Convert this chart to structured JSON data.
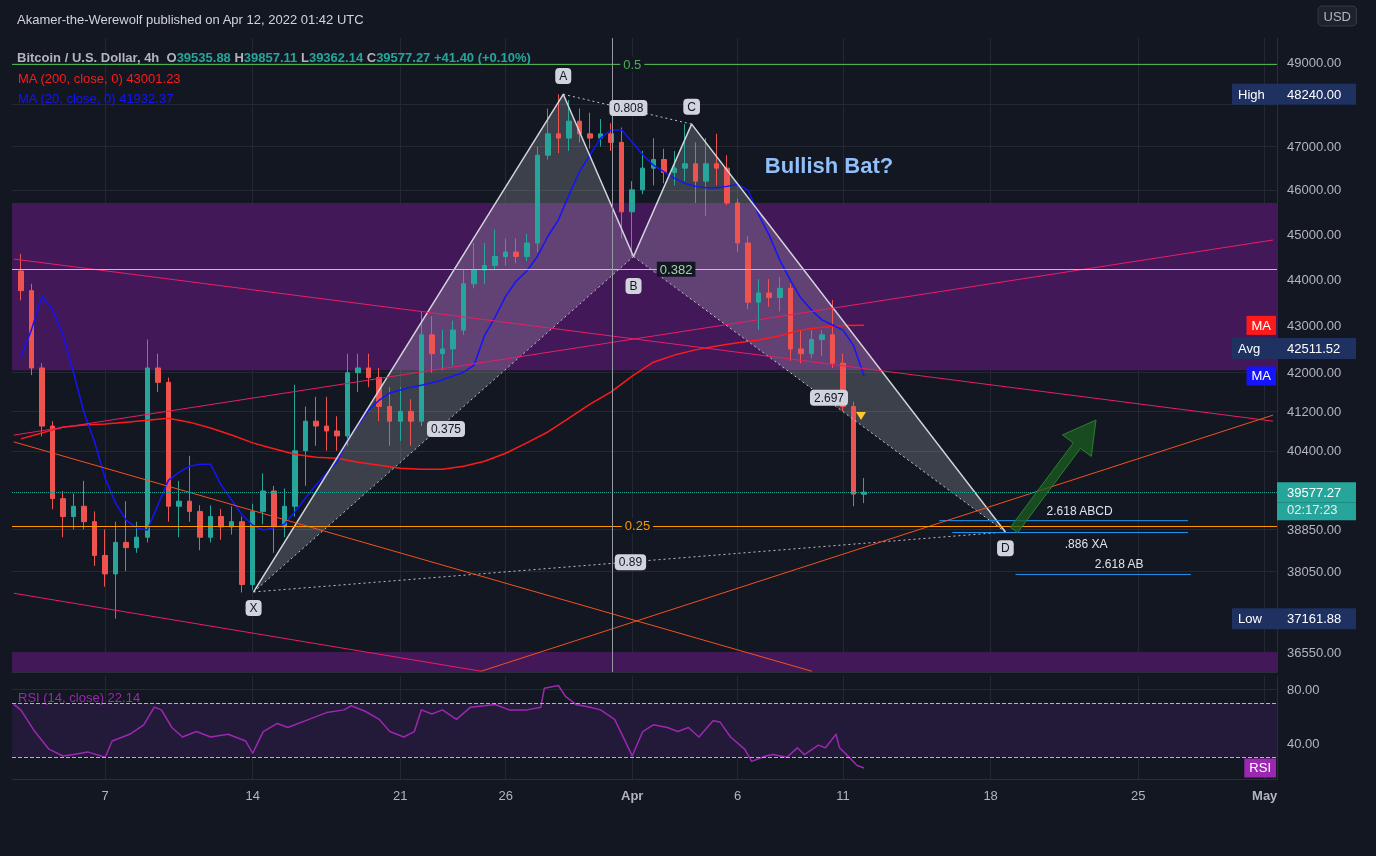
{
  "chart_data": [
    {
      "type": "candlestick",
      "title": "Akamer-the-Werewolf published on Apr 12, 2022 01:42 UTC",
      "subtitle": "Bitcoin / U.S. Dollar, 4h  O39535.88 H39857.11 L39362.14 C39577.27 +41.40 (+0.10%)",
      "x": [
        "2022-03-03T00:00",
        "2022-03-03T12:00",
        "2022-03-04T00:00",
        "2022-03-04T12:00",
        "2022-03-05T00:00",
        "2022-03-05T12:00",
        "2022-03-06T00:00",
        "2022-03-06T12:00",
        "2022-03-07T00:00",
        "2022-03-07T12:00",
        "2022-03-08T00:00",
        "2022-03-08T12:00",
        "2022-03-09T00:00",
        "2022-03-09T12:00",
        "2022-03-10T00:00",
        "2022-03-10T12:00",
        "2022-03-11T00:00",
        "2022-03-11T12:00",
        "2022-03-12T00:00",
        "2022-03-12T12:00",
        "2022-03-13T00:00",
        "2022-03-13T12:00",
        "2022-03-14T00:00",
        "2022-03-14T12:00",
        "2022-03-15T00:00",
        "2022-03-15T12:00",
        "2022-03-16T00:00",
        "2022-03-16T12:00",
        "2022-03-17T00:00",
        "2022-03-17T12:00",
        "2022-03-18T00:00",
        "2022-03-18T12:00",
        "2022-03-19T00:00",
        "2022-03-19T12:00",
        "2022-03-20T00:00",
        "2022-03-20T12:00",
        "2022-03-21T00:00",
        "2022-03-21T12:00",
        "2022-03-22T00:00",
        "2022-03-22T12:00",
        "2022-03-23T00:00",
        "2022-03-23T12:00",
        "2022-03-24T00:00",
        "2022-03-24T12:00",
        "2022-03-25T00:00",
        "2022-03-25T12:00",
        "2022-03-26T00:00",
        "2022-03-26T12:00",
        "2022-03-27T00:00",
        "2022-03-27T12:00",
        "2022-03-28T00:00",
        "2022-03-28T12:00",
        "2022-03-29T00:00",
        "2022-03-29T12:00",
        "2022-03-30T00:00",
        "2022-03-30T12:00",
        "2022-03-31T00:00",
        "2022-03-31T12:00",
        "2022-04-01T00:00",
        "2022-04-01T12:00",
        "2022-04-02T00:00",
        "2022-04-02T12:00",
        "2022-04-03T00:00",
        "2022-04-03T12:00",
        "2022-04-04T00:00",
        "2022-04-04T12:00",
        "2022-04-05T00:00",
        "2022-04-05T12:00",
        "2022-04-06T00:00",
        "2022-04-06T12:00",
        "2022-04-07T00:00",
        "2022-04-07T12:00",
        "2022-04-08T00:00",
        "2022-04-08T12:00",
        "2022-04-09T00:00",
        "2022-04-09T12:00",
        "2022-04-10T00:00",
        "2022-04-10T12:00",
        "2022-04-11T00:00",
        "2022-04-11T12:00",
        "2022-04-12T00:00"
      ],
      "ohlc": [
        [
          44180,
          44560,
          43540,
          43750
        ],
        [
          43750,
          43900,
          41950,
          42100
        ],
        [
          42100,
          42200,
          40690,
          40900
        ],
        [
          40900,
          41000,
          39240,
          39450
        ],
        [
          39450,
          39600,
          38700,
          39100
        ],
        [
          39100,
          39550,
          38850,
          39300
        ],
        [
          39300,
          39800,
          38850,
          39000
        ],
        [
          39000,
          39200,
          38150,
          38350
        ],
        [
          38350,
          38850,
          37760,
          38000
        ],
        [
          38000,
          39000,
          37161.88,
          38600
        ],
        [
          38600,
          39400,
          38050,
          38500
        ],
        [
          38500,
          39000,
          38400,
          38700
        ],
        [
          38700,
          42700,
          38600,
          42100
        ],
        [
          42100,
          42400,
          41600,
          41800
        ],
        [
          41800,
          41900,
          39000,
          39300
        ],
        [
          39300,
          39800,
          38700,
          39400
        ],
        [
          39400,
          40300,
          39000,
          39200
        ],
        [
          39200,
          39320,
          38450,
          38700
        ],
        [
          38700,
          39320,
          38600,
          39100
        ],
        [
          39100,
          39250,
          38650,
          38900
        ],
        [
          38900,
          39300,
          38750,
          39000
        ],
        [
          39000,
          39100,
          37650,
          37800
        ],
        [
          37800,
          39350,
          37700,
          39200
        ],
        [
          39200,
          39950,
          38950,
          39600
        ],
        [
          39600,
          39700,
          38400,
          38900
        ],
        [
          38900,
          39650,
          38700,
          39300
        ],
        [
          39300,
          41750,
          39100,
          40400
        ],
        [
          40400,
          41300,
          39700,
          41000
        ],
        [
          41000,
          41500,
          40500,
          40900
        ],
        [
          40900,
          41500,
          40400,
          40800
        ],
        [
          40800,
          41100,
          40400,
          40700
        ],
        [
          40700,
          42400,
          40500,
          42000
        ],
        [
          42000,
          42400,
          41600,
          42100
        ],
        [
          42100,
          42400,
          41700,
          41900
        ],
        [
          41900,
          42100,
          41000,
          41300
        ],
        [
          41300,
          41700,
          40500,
          41000
        ],
        [
          41000,
          41700,
          40600,
          41200
        ],
        [
          41200,
          41450,
          40500,
          41000
        ],
        [
          41000,
          43300,
          40900,
          42800
        ],
        [
          42800,
          43200,
          42000,
          42400
        ],
        [
          42400,
          42900,
          42050,
          42500
        ],
        [
          42500,
          43100,
          42150,
          42900
        ],
        [
          42900,
          44200,
          42800,
          43900
        ],
        [
          43900,
          44800,
          43800,
          44200
        ],
        [
          44200,
          44800,
          43900,
          44300
        ],
        [
          44300,
          45100,
          44200,
          44500
        ],
        [
          44500,
          44900,
          44300,
          44600
        ],
        [
          44600,
          44900,
          44350,
          44500
        ],
        [
          44500,
          45000,
          44400,
          44800
        ],
        [
          44800,
          47000,
          44600,
          46800
        ],
        [
          46800,
          47900,
          46700,
          47300
        ],
        [
          47300,
          48240,
          46850,
          47200
        ],
        [
          47200,
          48100,
          46900,
          47600
        ],
        [
          47600,
          47900,
          47100,
          47300
        ],
        [
          47300,
          47800,
          46950,
          47200
        ],
        [
          47200,
          47650,
          47000,
          47300
        ],
        [
          47300,
          47550,
          46900,
          47100
        ],
        [
          47100,
          47450,
          44900,
          45500
        ],
        [
          45500,
          46200,
          44500,
          46000
        ],
        [
          46000,
          46900,
          45900,
          46500
        ],
        [
          46500,
          47200,
          46100,
          46700
        ],
        [
          46700,
          46950,
          46150,
          46400
        ],
        [
          46400,
          46900,
          46100,
          46500
        ],
        [
          46500,
          47530,
          46200,
          46600
        ],
        [
          46600,
          47100,
          45700,
          46200
        ],
        [
          46200,
          47200,
          45400,
          46600
        ],
        [
          46600,
          47300,
          46100,
          46500
        ],
        [
          46500,
          46800,
          45650,
          45700
        ],
        [
          45700,
          45800,
          44600,
          44800
        ],
        [
          44800,
          44950,
          43350,
          43500
        ],
        [
          43500,
          44000,
          42900,
          43700
        ],
        [
          43700,
          44000,
          43400,
          43600
        ],
        [
          43600,
          44050,
          43300,
          43800
        ],
        [
          43800,
          43900,
          42250,
          42500
        ],
        [
          42500,
          42900,
          42200,
          42400
        ],
        [
          42400,
          42900,
          42300,
          42700
        ],
        [
          42700,
          42900,
          42350,
          42800
        ],
        [
          42800,
          43550,
          42100,
          42200
        ],
        [
          42200,
          42400,
          41200,
          41300
        ],
        [
          41300,
          41400,
          39300,
          39540
        ],
        [
          39535.88,
          39857.11,
          39362.14,
          39577.27
        ]
      ],
      "colors": [
        "#ef5350",
        "#ef5350",
        "#ef5350",
        "#ef5350",
        "#ef5350",
        "#26a69a",
        "#ef5350",
        "#ef5350",
        "#ef5350",
        "#26a69a",
        "#ef5350",
        "#26a69a",
        "#26a69a",
        "#ef5350",
        "#ef5350",
        "#26a69a",
        "#ef5350",
        "#ef5350",
        "#26a69a",
        "#ef5350",
        "#26a69a",
        "#ef5350",
        "#26a69a",
        "#26a69a",
        "#ef5350",
        "#26a69a",
        "#26a69a",
        "#26a69a",
        "#ef5350",
        "#ef5350",
        "#ef5350",
        "#26a69a",
        "#26a69a",
        "#ef5350",
        "#ef5350",
        "#ef5350",
        "#26a69a",
        "#ef5350",
        "#26a69a",
        "#ef5350",
        "#26a69a",
        "#26a69a",
        "#26a69a",
        "#26a69a",
        "#26a69a",
        "#26a69a",
        "#26a69a",
        "#ef5350",
        "#26a69a",
        "#26a69a",
        "#26a69a",
        "#ef5350",
        "#26a69a",
        "#ef5350",
        "#ef5350",
        "#26a69a",
        "#ef5350",
        "#ef5350",
        "#26a69a",
        "#26a69a",
        "#26a69a",
        "#ef5350",
        "#26a69a",
        "#26a69a",
        "#ef5350",
        "#26a69a",
        "#ef5350",
        "#ef5350",
        "#ef5350",
        "#ef5350",
        "#26a69a",
        "#ef5350",
        "#26a69a",
        "#ef5350",
        "#ef5350",
        "#26a69a",
        "#26a69a",
        "#ef5350",
        "#ef5350",
        "#ef5350",
        "#26a69a"
      ],
      "series": [
        {
          "type": "line",
          "name": "MA (200, close, 0) 43001.23",
          "color": "#ff1a1a",
          "x": [
            "2022-03-03",
            "2022-03-04",
            "2022-03-05",
            "2022-03-06",
            "2022-03-07",
            "2022-03-08",
            "2022-03-09",
            "2022-03-10",
            "2022-03-11",
            "2022-03-12",
            "2022-03-13",
            "2022-03-14",
            "2022-03-15",
            "2022-03-16",
            "2022-03-17",
            "2022-03-18",
            "2022-03-19",
            "2022-03-20",
            "2022-03-21",
            "2022-03-22",
            "2022-03-23",
            "2022-03-24",
            "2022-03-25",
            "2022-03-26",
            "2022-03-27",
            "2022-03-28",
            "2022-03-29",
            "2022-03-30",
            "2022-03-31",
            "2022-04-01",
            "2022-04-02",
            "2022-04-03",
            "2022-04-04",
            "2022-04-05",
            "2022-04-06",
            "2022-04-07",
            "2022-04-08",
            "2022-04-09",
            "2022-04-10",
            "2022-04-11",
            "2022-04-12"
          ],
          "values": [
            40640,
            40760,
            40880,
            40920,
            40940,
            40980,
            41020,
            41060,
            40980,
            40860,
            40720,
            40560,
            40440,
            40330,
            40270,
            40250,
            40170,
            40110,
            40050,
            40030,
            40030,
            40090,
            40190,
            40350,
            40560,
            40780,
            41060,
            41350,
            41600,
            41930,
            42220,
            42370,
            42480,
            42560,
            42630,
            42690,
            42780,
            42900,
            42960,
            43000,
            43001.23
          ]
        },
        {
          "type": "line",
          "name": "MA (20, close, 0) 41932.37",
          "color": "#1414ff",
          "values": [
            42330,
            42900,
            43630,
            43350,
            42790,
            42010,
            41170,
            40580,
            39850,
            39360,
            39030,
            38880,
            38840,
            39320,
            39810,
            39970,
            40090,
            40130,
            40130,
            39720,
            39420,
            39130,
            38930,
            38840,
            38880,
            38950,
            39190,
            39460,
            39720,
            39950,
            40170,
            40620,
            40920,
            41230,
            41430,
            41580,
            41640,
            41700,
            41740,
            41790,
            41850,
            41930,
            42010,
            42160,
            42790,
            43180,
            43630,
            43960,
            44180,
            44500,
            44950,
            45320,
            45880,
            46420,
            46810,
            47200,
            47390,
            47390,
            47110,
            46810,
            46570,
            46420,
            46270,
            46150,
            46080,
            46050,
            46050,
            46080,
            46130,
            45990,
            45430,
            44970,
            44420,
            43980,
            43590,
            43330,
            43120,
            43010,
            42900,
            42570,
            41932.37
          ]
        },
        {
          "type": "line",
          "color": "#d1d4dc",
          "x": [
            "2022-03-14T01:00",
            "2022-03-28T17:30",
            "2022-04-01T01:30",
            "2022-04-03T19:40",
            "2022-04-18T16:50"
          ],
          "values": [
            37660,
            48240,
            44500,
            47530,
            38800
          ]
        },
        {
          "type": "line",
          "color": "#d1d4dc",
          "line_style": "dotted",
          "x": [
            "2022-03-14T01:00",
            "2022-04-01T01:30"
          ],
          "values": [
            37660,
            44500
          ]
        },
        {
          "type": "line",
          "color": "#d1d4dc",
          "line_style": "dotted",
          "x": [
            "2022-03-28T17:30",
            "2022-04-03T19:40"
          ],
          "values": [
            48240,
            47530
          ]
        },
        {
          "type": "line",
          "color": "#d1d4dc",
          "line_style": "dotted",
          "x": [
            "2022-04-01T01:30",
            "2022-04-18T16:50"
          ],
          "values": [
            44500,
            38800
          ]
        },
        {
          "type": "line",
          "color": "#d1d4dc",
          "line_style": "dotted",
          "x": [
            "2022-03-14T01:00",
            "2022-04-18T16:50"
          ],
          "values": [
            37660,
            38800
          ]
        },
        {
          "type": "line",
          "name": "2.618 ABCD",
          "color": "#2196f3",
          "x": [
            "2022-04-15T13:30",
            "2022-04-27T08:40"
          ],
          "values": [
            39020,
            39020
          ]
        },
        {
          "type": "line",
          "name": ".886 XA",
          "color": "#2196f3",
          "x": [
            "2022-04-16T04:20",
            "2022-04-27T08:40"
          ],
          "values": [
            38790,
            38790
          ]
        },
        {
          "type": "line",
          "name": "2.618 AB",
          "color": "#2196f3",
          "x": [
            "2022-04-19T04:20",
            "2022-04-27T12:00"
          ],
          "values": [
            37990,
            37990
          ]
        },
        {
          "type": "line",
          "color": "#f4511e",
          "x": [
            "2022-03-02T16:00",
            "2022-04-09T12:30"
          ],
          "values": [
            40580,
            36204
          ]
        },
        {
          "type": "line",
          "color": "#e91e63",
          "x": [
            "2022-03-02T16:00",
            "2022-03-24T20:00"
          ],
          "values": [
            37636,
            36204
          ]
        },
        {
          "type": "line",
          "color": "#e91e63",
          "x": [
            "2022-03-02T16:00",
            "2022-05-01T09:30"
          ],
          "values": [
            44444,
            41000
          ]
        },
        {
          "type": "line",
          "color": "#e91e63",
          "x": [
            "2022-03-02T16:00",
            "2022-05-01T09:30"
          ],
          "values": [
            40717,
            44867
          ]
        },
        {
          "type": "line",
          "color": "#f4511e",
          "x": [
            "2022-03-24T20:00",
            "2022-05-01T09:30"
          ],
          "values": [
            36204,
            41124
          ]
        }
      ],
      "xlim": [
        "2022-03-02T14:00",
        "2022-05-01T14:00"
      ],
      "xticks": [
        {
          "value": "2022-03-07",
          "label": null
        },
        {
          "value": "2022-03-14",
          "label": null
        },
        {
          "value": "2022-03-21",
          "label": null
        },
        {
          "value": "2022-03-26",
          "label": null
        },
        {
          "value": "2022-04-01",
          "label": null
        },
        {
          "value": "2022-04-06",
          "label": null
        },
        {
          "value": "2022-04-11",
          "label": null
        },
        {
          "value": "2022-04-18",
          "label": null
        },
        {
          "value": "2022-04-25",
          "label": null
        },
        {
          "value": "2022-05-01",
          "label": null
        }
      ],
      "ylim": [
        36190,
        49610
      ],
      "yticks": [
        {
          "value": 36550,
          "label": "36550.00"
        },
        {
          "value": 37161.88,
          "label": "37161.88"
        },
        {
          "value": 38050,
          "label": "38050.00"
        },
        {
          "value": 38850,
          "label": "38850.00"
        },
        {
          "value": 39577.27,
          "label": "39577.27"
        },
        {
          "value": 40400,
          "label": "40400.00"
        },
        {
          "value": 41200,
          "label": "41200.00"
        },
        {
          "value": 42000,
          "label": "42000.00"
        },
        {
          "value": 42511.52,
          "label": "42511.52"
        },
        {
          "value": 43000,
          "label": "43000.00"
        },
        {
          "value": 44000,
          "label": "44000.00"
        },
        {
          "value": 45000,
          "label": "45000.00"
        },
        {
          "value": 46000,
          "label": "46000.00"
        },
        {
          "value": 47000,
          "label": "47000.00"
        },
        {
          "value": 48000,
          "label": null
        },
        {
          "value": 48240,
          "label": "48240.00"
        },
        {
          "value": 49000,
          "label": "49000.00"
        }
      ],
      "log": "y",
      "grid": true,
      "legend": "top left",
      "tick_labels": "y",
      "ref_lines": [
        {
          "axis": "y",
          "value": 48970,
          "color": "#4caf50"
        },
        {
          "axis": "y",
          "value": 44220,
          "color": "#a5d6a7"
        },
        {
          "axis": "y",
          "value": 38920,
          "color": "#ff9800"
        },
        {
          "axis": "y",
          "value": 39577.27,
          "color": "#26a69a",
          "line_style": "dotted"
        },
        {
          "axis": "x",
          "value": "2022-03-31T01:30",
          "color": "#9598a1"
        }
      ],
      "bands": [
        {
          "axis": "y",
          "from": 42050,
          "to": 45700,
          "color": "#431858"
        },
        {
          "axis": "y",
          "from": 36190,
          "to": 36550,
          "color": "#431858"
        }
      ],
      "annotations": [
        {
          "text": "X",
          "x": "2022-03-14T01:00",
          "y": 37360
        },
        {
          "text": "A",
          "x": "2022-03-28T17:30",
          "y": 48680
        },
        {
          "text": "B",
          "x": "2022-04-01T01:30",
          "y": 43850
        },
        {
          "text": "C",
          "x": "2022-04-03T19:40",
          "y": 47940
        },
        {
          "text": "D",
          "x": "2022-04-18T16:50",
          "y": 38490
        },
        {
          "text": "0.375",
          "x": "2022-03-23T04:00",
          "y": 40840
        },
        {
          "text": "0.808",
          "x": "2022-03-31T19:40",
          "y": 47910
        },
        {
          "text": "2.697",
          "x": "2022-04-10T08:00",
          "y": 41480
        },
        {
          "text": "0.89",
          "x": "2022-03-31T22:00",
          "y": 38220
        },
        {
          "text": "0.5",
          "x": "2022-04-01T00:00",
          "y": 48970
        },
        {
          "text": "0.382",
          "x": "2022-04-03T02:00",
          "y": 44220
        },
        {
          "text": "0.25",
          "x": "2022-04-01T06:00",
          "y": 38920
        },
        "Bullish Bat?",
        "USD",
        "02:17:23",
        "High",
        "Avg",
        "Low",
        "MA",
        "MA"
      ]
    },
    {
      "type": "line",
      "series": [
        {
          "name": "RSI (14, close) 22.14",
          "color": "#9c27b0",
          "x": [
            "2022-03-02T16:00",
            "2022-03-03T00:00",
            "2022-03-03T16:00",
            "2022-03-04T08:00",
            "2022-03-05T00:00",
            "2022-03-05T12:00",
            "2022-03-06T04:00",
            "2022-03-07T00:00",
            "2022-03-07T08:00",
            "2022-03-08T04:00",
            "2022-03-08T20:00",
            "2022-03-09T08:00",
            "2022-03-09T16:00",
            "2022-03-10T04:00",
            "2022-03-10T16:00",
            "2022-03-11T08:00",
            "2022-03-12T00:00",
            "2022-03-12T20:00",
            "2022-03-13T16:00",
            "2022-03-14T00:00",
            "2022-03-14T12:00",
            "2022-03-15T04:00",
            "2022-03-15T16:00",
            "2022-03-16T16:00",
            "2022-03-17T12:00",
            "2022-03-18T08:00",
            "2022-03-18T16:00",
            "2022-03-19T08:00",
            "2022-03-20T00:00",
            "2022-03-20T12:00",
            "2022-03-21T04:00",
            "2022-03-21T16:00",
            "2022-03-22T00:00",
            "2022-03-22T12:00",
            "2022-03-23T00:00",
            "2022-03-23T16:00",
            "2022-03-24T08:00",
            "2022-03-25T00:00",
            "2022-03-25T12:00",
            "2022-03-26T04:00",
            "2022-03-27T00:00",
            "2022-03-27T16:00",
            "2022-03-27T20:00",
            "2022-03-28T12:00",
            "2022-03-28T20:00",
            "2022-03-29T08:00",
            "2022-03-30T00:00",
            "2022-03-30T12:00",
            "2022-03-31T04:00",
            "2022-03-31T16:00",
            "2022-04-01T00:00",
            "2022-04-01T12:00",
            "2022-04-02T00:00",
            "2022-04-02T16:00",
            "2022-04-03T04:00",
            "2022-04-03T16:00",
            "2022-04-04T04:00",
            "2022-04-04T20:00",
            "2022-04-05T04:00",
            "2022-04-05T16:00",
            "2022-04-06T08:00",
            "2022-04-06T16:00",
            "2022-04-07T08:00",
            "2022-04-07T16:00",
            "2022-04-08T08:00",
            "2022-04-08T20:00",
            "2022-04-09T04:00",
            "2022-04-09T20:00",
            "2022-04-10T04:00",
            "2022-04-10T16:00",
            "2022-04-10T20:00",
            "2022-04-11T04:00",
            "2022-04-11T16:00",
            "2022-04-12T00:00"
          ],
          "values": [
            69,
            65,
            49,
            36,
            31,
            32,
            34,
            30,
            42,
            47,
            54,
            67,
            65,
            52,
            45,
            49,
            45,
            47,
            42,
            33,
            49,
            55,
            52,
            58,
            63,
            65,
            68,
            64,
            58,
            49,
            45,
            49,
            65,
            62,
            65,
            58,
            67,
            68,
            69,
            65,
            65,
            67,
            81,
            83,
            75,
            69,
            67,
            65,
            58,
            42,
            31,
            49,
            54,
            52,
            49,
            52,
            45,
            57,
            56,
            45,
            36,
            27,
            31,
            32,
            30,
            37,
            32,
            39,
            37,
            47,
            37,
            32,
            24,
            22.14
          ]
        }
      ],
      "xlim": [
        "2022-03-02T14:00",
        "2022-05-01T14:00"
      ],
      "xticks": [
        {
          "value": "2022-03-07",
          "label": "7"
        },
        {
          "value": "2022-03-14",
          "label": "14"
        },
        {
          "value": "2022-03-21",
          "label": "21"
        },
        {
          "value": "2022-03-26",
          "label": "26"
        },
        {
          "value": "2022-04-01",
          "label": "Apr"
        },
        {
          "value": "2022-04-06",
          "label": "6"
        },
        {
          "value": "2022-04-11",
          "label": "11"
        },
        {
          "value": "2022-04-18",
          "label": "18"
        },
        {
          "value": "2022-04-25",
          "label": "25"
        },
        {
          "value": "2022-05-01",
          "label": "May"
        }
      ],
      "ylim": [
        14,
        90
      ],
      "yticks": [
        {
          "value": 40,
          "label": "40.00"
        },
        {
          "value": 80,
          "label": "80.00"
        }
      ],
      "grid": true,
      "legend": "top left",
      "ref_lines": [
        {
          "axis": "y",
          "value": 70,
          "color": "#b2b5be",
          "line_style": "dashed"
        },
        {
          "axis": "y",
          "value": 30,
          "color": "#b2b5be",
          "line_style": "dashed"
        }
      ],
      "bands": [
        {
          "axis": "y",
          "from": 30,
          "to": 70,
          "color": "#231a3a"
        }
      ],
      "annotations": [
        "RSI"
      ]
    }
  ]
}
